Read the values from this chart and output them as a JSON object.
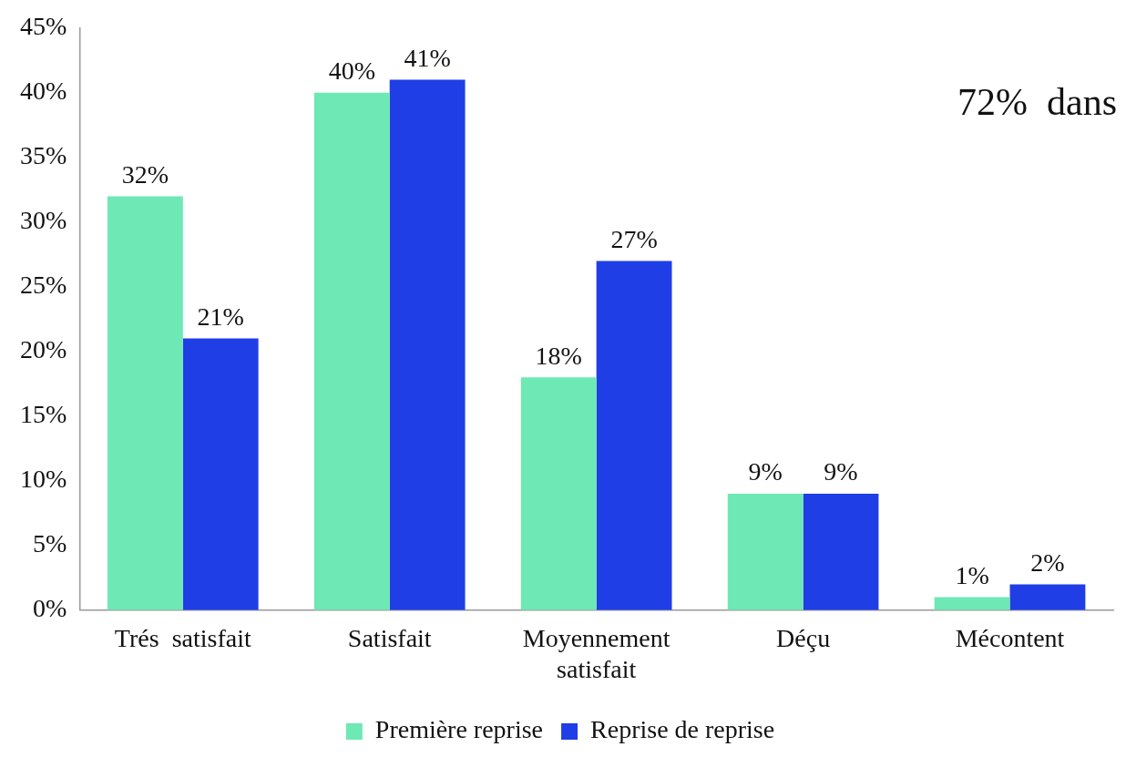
{
  "chart_data": {
    "type": "bar",
    "categories": [
      "Trés  satisfait",
      "Satisfait",
      "Moyennement satisfait",
      "Déçu",
      "Mécontent"
    ],
    "series": [
      {
        "name": "Première reprise",
        "color": "#6ee8b4",
        "values": [
          32,
          40,
          18,
          9,
          1
        ],
        "value_labels": [
          "32%",
          "40%",
          "18%",
          "9%",
          "1%"
        ]
      },
      {
        "name": "Reprise de reprise",
        "color": "#1f3ee6",
        "values": [
          21,
          41,
          27,
          9,
          2
        ],
        "value_labels": [
          "21%",
          "41%",
          "27%",
          "9%",
          "2%"
        ]
      }
    ],
    "ylim": [
      0,
      45
    ],
    "yticks": [
      {
        "value": 0,
        "label": "0%"
      },
      {
        "value": 5,
        "label": "5%"
      },
      {
        "value": 10,
        "label": "10%"
      },
      {
        "value": 15,
        "label": "15%"
      },
      {
        "value": 20,
        "label": "20%"
      },
      {
        "value": 25,
        "label": "25%"
      },
      {
        "value": 30,
        "label": "30%"
      },
      {
        "value": 35,
        "label": "35%"
      },
      {
        "value": 40,
        "label": "40%"
      },
      {
        "value": 45,
        "label": "45%"
      }
    ],
    "grid": false,
    "legend": "bottom",
    "annotations": [
      "72%  dans"
    ]
  }
}
